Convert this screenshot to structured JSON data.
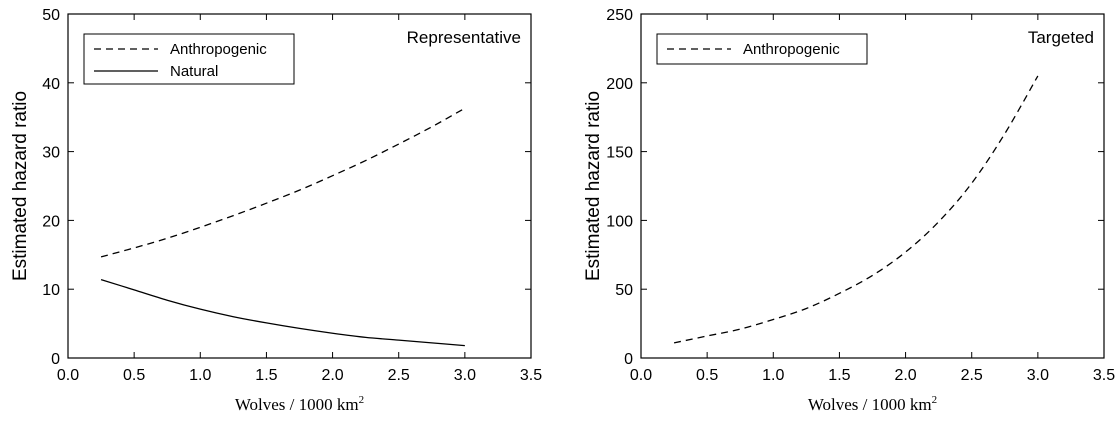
{
  "chart_data": [
    {
      "type": "line",
      "annotation": "Representative",
      "xlabel": "Wolves / 1000 km",
      "xlabel_sup": "2",
      "ylabel": "Estimated hazard ratio",
      "xlim": [
        0.0,
        3.5
      ],
      "ylim": [
        0,
        50
      ],
      "xticks": [
        "0.0",
        "0.5",
        "1.0",
        "1.5",
        "2.0",
        "2.5",
        "3.0",
        "3.5"
      ],
      "yticks": [
        "0",
        "10",
        "20",
        "30",
        "40",
        "50"
      ],
      "grid": false,
      "legend_position": "top-left",
      "series": [
        {
          "name": "Anthropogenic",
          "style": "dashed",
          "x": [
            0.25,
            0.5,
            0.75,
            1.0,
            1.25,
            1.5,
            1.75,
            2.0,
            2.25,
            2.5,
            2.75,
            3.0
          ],
          "y": [
            14.7,
            16.0,
            17.4,
            19.0,
            20.7,
            22.5,
            24.4,
            26.5,
            28.7,
            31.1,
            33.6,
            36.3
          ]
        },
        {
          "name": "Natural",
          "style": "solid",
          "x": [
            0.25,
            0.5,
            0.75,
            1.0,
            1.25,
            1.5,
            1.75,
            2.0,
            2.25,
            2.5,
            2.75,
            3.0
          ],
          "y": [
            11.4,
            9.9,
            8.4,
            7.1,
            6.0,
            5.1,
            4.3,
            3.6,
            3.0,
            2.6,
            2.2,
            1.8
          ]
        }
      ]
    },
    {
      "type": "line",
      "annotation": "Targeted",
      "xlabel": "Wolves / 1000 km",
      "xlabel_sup": "2",
      "ylabel": "Estimated hazard ratio",
      "xlim": [
        0.0,
        3.5
      ],
      "ylim": [
        0,
        250
      ],
      "xticks": [
        "0.0",
        "0.5",
        "1.0",
        "1.5",
        "2.0",
        "2.5",
        "3.0",
        "3.5"
      ],
      "yticks": [
        "0",
        "50",
        "100",
        "150",
        "200",
        "250"
      ],
      "grid": false,
      "legend_position": "top-left",
      "series": [
        {
          "name": "Anthropogenic",
          "style": "dashed",
          "x": [
            0.25,
            0.5,
            0.75,
            1.0,
            1.25,
            1.5,
            1.75,
            2.0,
            2.25,
            2.5,
            2.75,
            3.0
          ],
          "y": [
            11,
            16,
            21,
            28,
            36,
            47,
            60,
            77,
            99,
            127,
            163,
            205
          ]
        }
      ]
    }
  ]
}
